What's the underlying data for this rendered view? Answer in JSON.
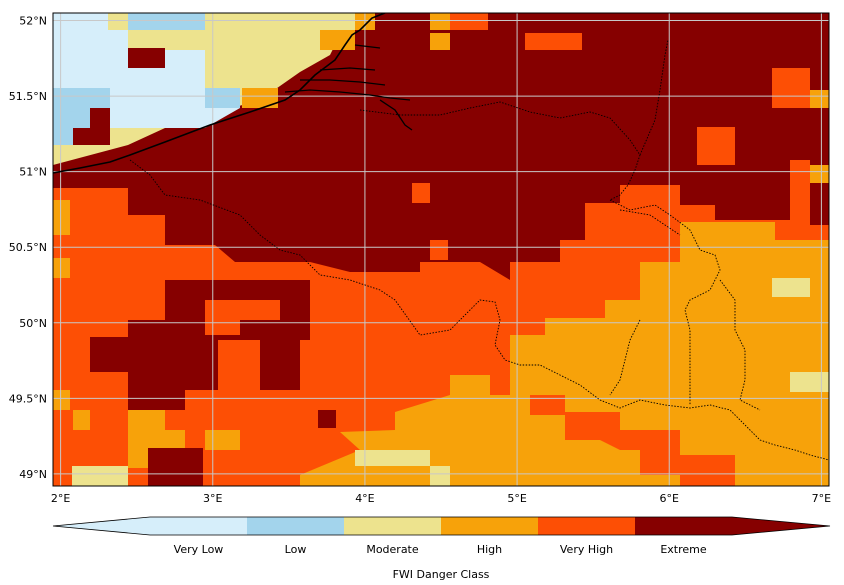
{
  "map": {
    "lon_range": [
      1.95,
      7.05
    ],
    "lat_range": [
      48.92,
      52.05
    ],
    "lon_ticks": [
      2,
      3,
      4,
      5,
      6,
      7
    ],
    "lon_tick_labels": [
      "2°E",
      "3°E",
      "4°E",
      "5°E",
      "6°E",
      "7°E"
    ],
    "lat_ticks": [
      49,
      49.5,
      50,
      50.5,
      51,
      51.5,
      52
    ],
    "lat_tick_labels": [
      "49°N",
      "49.5°N",
      "50°N",
      "50.5°N",
      "51°N",
      "51.5°N",
      "52°N"
    ],
    "gridlines": true
  },
  "colorbar": {
    "title": "FWI Danger Class",
    "extend": "both",
    "classes": [
      {
        "label": "Very Low",
        "color": "#d6eefa"
      },
      {
        "label": "Low",
        "color": "#a3d4ec"
      },
      {
        "label": "Moderate",
        "color": "#ede38e"
      },
      {
        "label": "High",
        "color": "#f7a20a"
      },
      {
        "label": "Very High",
        "color": "#fd4f05"
      },
      {
        "label": "Extreme",
        "color": "#860000"
      }
    ]
  }
}
